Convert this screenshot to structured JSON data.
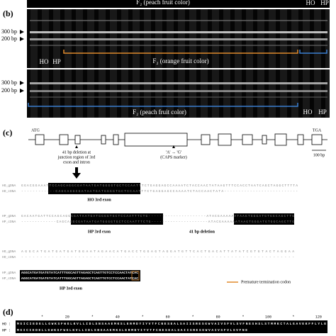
{
  "top_strip": {
    "group": "F₂ (peach fruit color)",
    "lanes": [
      "HO",
      "HP"
    ]
  },
  "panel_b": {
    "label": "(b)",
    "gel1": {
      "markers": [
        "300 bp",
        "200 bp"
      ],
      "lanes": [
        "HO",
        "HP"
      ],
      "group": "F₂ (orange fruit color)"
    },
    "gel2": {
      "markers": [
        "300 bp",
        "200 bp"
      ],
      "lanes": [
        "HO",
        "HP"
      ],
      "group": "F₂ (peach fruit color)"
    }
  },
  "panel_c": {
    "label": "(c)",
    "start": "ATG",
    "stop": "TGA",
    "scale": "100 bp",
    "deletion_note": [
      "41 bp deletion at",
      "junction region of 3rd",
      "exon and intron"
    ],
    "snp_note": [
      "'A' → 'G'",
      "(CAPS marker)"
    ],
    "block1": {
      "names": [
        "HO_gDNA",
        "HO_cDNA"
      ],
      "seq": [
        "GGACGGAAATTCCAGCAGGCGATAATGATGGGGTGCTCCAATTTCTGAGGAGCCAAAATCTACCAACTATAAGTTTCCACCTAATCAGCTAGGCTTTTA",
        "------------CAGCAGGCGATAATGATGGGGTGCTCCAATTTCTGAGGAGCCAAAATCTACCAACTATA--------------------------"
      ],
      "caption": "HO 3rd exon"
    },
    "block2": {
      "names": [
        "HP_gDNA",
        "HP_cDNA"
      ],
      "seq": [
        "GACAATGATTCCAGCAGGCGATAATGATGGGGTGCTCCAATTTCTG---------------------ATACGAAAAAATAAGTGGGATGTGGCAGCTTG",
        "-------------CAGCAGGCGATAATGATGGGGTGCTCCAATTTCTG---------------------ATACGAAAAAATAAGTGGGATGTGGCAGCTTG"
      ],
      "captions": [
        "HP 3rd exon",
        "41 bp deletion"
      ]
    },
    "block3": {
      "names": [
        "HO_gDNA",
        "HO_cDNA"
      ],
      "seq": [
        "AGGCATGATGATGATGGAATAGAACATGACCTGGAGTAGGATGTTCACTGACATTATATCGTGTACTAGGAA",
        "------------------------------------------------------------------------"
      ]
    },
    "block4": {
      "names": [
        "HP_gDNA",
        "HP_cDNA"
      ],
      "seq": [
        "AGGCATGATGATGTATCATTTGGCAGTTAGAGCTCAGTTGTCCTCCAACTATCAC",
        "AGGCATGATGATGTATCATTTGGCAGTTAGAGCTCAGTTGTCCTCCAACTATCAC"
      ],
      "caption": "HP 3rd exon",
      "legend": "Premature termination codon"
    }
  },
  "panel_d": {
    "label": "(d)",
    "ruler": [
      "*",
      "20",
      "*",
      "40",
      "*",
      "60",
      "*",
      "80",
      "*",
      "100",
      "*",
      "120"
    ],
    "rows": [
      {
        "name": "HO :",
        "seq": "MSICIEDELLGWKSFWGLKVLLIDLSNSAAEMKSLERMDYIYVTFCNESEALSAIISRESGWVAIVSFVLSVFNESHSLSTMMKCTALGAVEKFFLYLE"
      },
      {
        "name": "HP :",
        "seq": "MSICIEDELLGWKSFWGLKVLLIDLSNSAAEMKSLERMDYIYVTFCNESEALSAIISRESGWVAIVSFVLSVFNE"
      }
    ]
  }
}
